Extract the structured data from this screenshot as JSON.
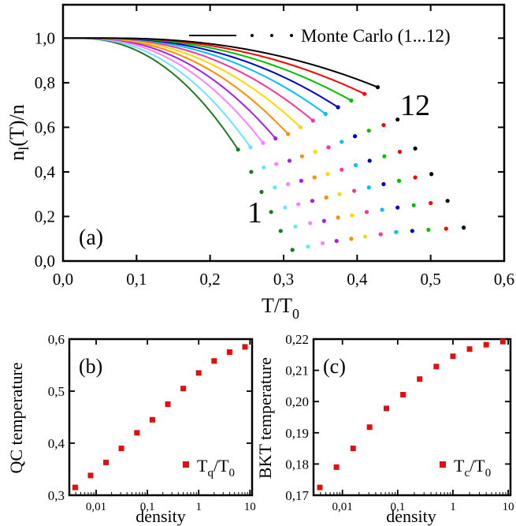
{
  "chart_data": [
    {
      "type": "line",
      "panel_label": "(a)",
      "xlabel_main": "T/T",
      "xlabel_sub": "0",
      "ylabel_pre": "n",
      "ylabel_sub": "l",
      "ylabel_post": "(T)/n",
      "xlim": [
        0,
        0.6
      ],
      "ylim": [
        0,
        1.15
      ],
      "xticks": [
        0,
        0.1,
        0.2,
        0.3,
        0.4,
        0.5,
        0.6
      ],
      "xtick_labels": [
        "0,0",
        "0,1",
        "0,2",
        "0,3",
        "0,4",
        "0,5",
        "0,6"
      ],
      "yticks": [
        0,
        0.2,
        0.4,
        0.6,
        0.8,
        1.0
      ],
      "ytick_labels": [
        "0,0",
        "0,2",
        "0,4",
        "0,6",
        "0,8",
        "1,0"
      ],
      "legend": {
        "text": "Monte Carlo (1...12)",
        "placement": "top-right"
      },
      "curve_labels": {
        "first": "1",
        "last": "12"
      },
      "series": [
        {
          "color": "#1f7a1f",
          "tend": 0.238,
          "mc": [
            [
              0.238,
              0.5
            ],
            [
              0.256,
              0.4
            ],
            [
              0.27,
              0.31
            ],
            [
              0.283,
              0.22
            ],
            [
              0.296,
              0.135
            ],
            [
              0.312,
              0.05
            ]
          ]
        },
        {
          "color": "#66e6ff",
          "tend": 0.255,
          "mc": [
            [
              0.255,
              0.51
            ],
            [
              0.273,
              0.42
            ],
            [
              0.288,
              0.33
            ],
            [
              0.302,
              0.24
            ],
            [
              0.316,
              0.155
            ],
            [
              0.333,
              0.065
            ]
          ]
        },
        {
          "color": "#ff80ff",
          "tend": 0.272,
          "mc": [
            [
              0.272,
              0.53
            ],
            [
              0.29,
              0.435
            ],
            [
              0.306,
              0.345
            ],
            [
              0.32,
              0.255
            ],
            [
              0.336,
              0.17
            ],
            [
              0.353,
              0.08
            ]
          ]
        },
        {
          "color": "#a020f0",
          "tend": 0.289,
          "mc": [
            [
              0.289,
              0.55
            ],
            [
              0.308,
              0.45
            ],
            [
              0.324,
              0.36
            ],
            [
              0.339,
              0.27
            ],
            [
              0.355,
              0.18
            ],
            [
              0.372,
              0.09
            ]
          ]
        },
        {
          "color": "#ff8c00",
          "tend": 0.306,
          "mc": [
            [
              0.306,
              0.57
            ],
            [
              0.325,
              0.47
            ],
            [
              0.342,
              0.375
            ],
            [
              0.358,
              0.285
            ],
            [
              0.374,
              0.195
            ],
            [
              0.392,
              0.1
            ]
          ]
        },
        {
          "color": "#ffd700",
          "tend": 0.323,
          "mc": [
            [
              0.323,
              0.6
            ],
            [
              0.343,
              0.49
            ],
            [
              0.36,
              0.39
            ],
            [
              0.376,
              0.3
            ],
            [
              0.393,
              0.205
            ],
            [
              0.411,
              0.11
            ]
          ]
        },
        {
          "color": "#ff3399",
          "tend": 0.34,
          "mc": [
            [
              0.34,
              0.63
            ],
            [
              0.361,
              0.51
            ],
            [
              0.379,
              0.41
            ],
            [
              0.396,
              0.315
            ],
            [
              0.413,
              0.22
            ],
            [
              0.432,
              0.12
            ]
          ]
        },
        {
          "color": "#00bfff",
          "tend": 0.357,
          "mc": [
            [
              0.357,
              0.66
            ],
            [
              0.379,
              0.535
            ],
            [
              0.398,
              0.43
            ],
            [
              0.416,
              0.33
            ],
            [
              0.434,
              0.23
            ],
            [
              0.453,
              0.13
            ]
          ]
        },
        {
          "color": "#0000cd",
          "tend": 0.374,
          "mc": [
            [
              0.374,
              0.69
            ],
            [
              0.397,
              0.56
            ],
            [
              0.417,
              0.45
            ],
            [
              0.436,
              0.345
            ],
            [
              0.455,
              0.24
            ],
            [
              0.475,
              0.135
            ]
          ]
        },
        {
          "color": "#00c000",
          "tend": 0.392,
          "mc": [
            [
              0.392,
              0.72
            ],
            [
              0.416,
              0.585
            ],
            [
              0.437,
              0.47
            ],
            [
              0.457,
              0.36
            ],
            [
              0.477,
              0.25
            ],
            [
              0.497,
              0.14
            ]
          ]
        },
        {
          "color": "#ff0000",
          "tend": 0.41,
          "mc": [
            [
              0.41,
              0.75
            ],
            [
              0.436,
              0.61
            ],
            [
              0.458,
              0.49
            ],
            [
              0.479,
              0.375
            ],
            [
              0.5,
              0.26
            ],
            [
              0.521,
              0.145
            ]
          ]
        },
        {
          "color": "#000000",
          "tend": 0.428,
          "mc": [
            [
              0.428,
              0.78
            ],
            [
              0.455,
              0.635
            ],
            [
              0.479,
              0.505
            ],
            [
              0.501,
              0.39
            ],
            [
              0.523,
              0.27
            ],
            [
              0.545,
              0.15
            ]
          ]
        }
      ]
    },
    {
      "type": "scatter",
      "panel_label": "(b)",
      "ylabel": "QC temperature",
      "xlabel": "density",
      "xscale": "log",
      "xlim": [
        0.003,
        11
      ],
      "ylim": [
        0.3,
        0.6
      ],
      "xticks": [
        0.01,
        0.1,
        1,
        10
      ],
      "xtick_labels": [
        "0,01",
        "0,1",
        "1",
        "10"
      ],
      "yticks": [
        0.3,
        0.4,
        0.5,
        0.6
      ],
      "ytick_labels": [
        "0,3",
        "0,4",
        "0,5",
        "0,6"
      ],
      "legend_main": "T",
      "legend_sub": "q",
      "legend_post": "/T",
      "legend_sub2": "0",
      "marker_color": "#e01010",
      "x": [
        0.0039,
        0.0078,
        0.0156,
        0.031,
        0.0625,
        0.125,
        0.25,
        0.5,
        1,
        2,
        4,
        8
      ],
      "y": [
        0.315,
        0.338,
        0.363,
        0.39,
        0.42,
        0.445,
        0.475,
        0.505,
        0.535,
        0.558,
        0.575,
        0.585
      ]
    },
    {
      "type": "scatter",
      "panel_label": "(c)",
      "ylabel": "BKT temperature",
      "xlabel": "density",
      "xscale": "log",
      "xlim": [
        0.003,
        11
      ],
      "ylim": [
        0.17,
        0.22
      ],
      "xticks": [
        0.01,
        0.1,
        1,
        10
      ],
      "xtick_labels": [
        "0,01",
        "0,1",
        "1",
        "10"
      ],
      "yticks": [
        0.17,
        0.18,
        0.19,
        0.2,
        0.21,
        0.22
      ],
      "ytick_labels": [
        "0,17",
        "0,18",
        "0,19",
        "0,20",
        "0,21",
        "0,22"
      ],
      "legend_main": "T",
      "legend_sub": "c",
      "legend_post": "/T",
      "legend_sub2": "0",
      "marker_color": "#e01010",
      "x": [
        0.0039,
        0.0078,
        0.0156,
        0.031,
        0.0625,
        0.125,
        0.25,
        0.5,
        1,
        2,
        4,
        8
      ],
      "y": [
        0.1725,
        0.179,
        0.185,
        0.1918,
        0.1978,
        0.2022,
        0.2072,
        0.2112,
        0.2145,
        0.2168,
        0.2182,
        0.2192
      ]
    }
  ]
}
